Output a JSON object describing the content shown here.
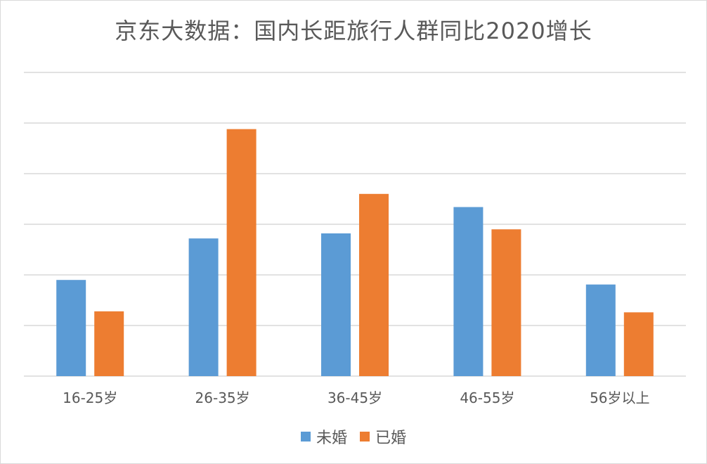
{
  "chart_data": {
    "type": "bar",
    "title": "京东大数据：国内长距旅行人群同比2020增长",
    "xlabel": "",
    "ylabel": "",
    "ylim": [
      0,
      6
    ],
    "grid": true,
    "legend_position": "bottom",
    "categories": [
      "16-25岁",
      "26-35岁",
      "36-45岁",
      "46-55岁",
      "56岁以上"
    ],
    "series": [
      {
        "name": "未婚",
        "color": "#5b9bd5",
        "values": [
          1.9,
          2.72,
          2.82,
          3.34,
          1.81
        ]
      },
      {
        "name": "已婚",
        "color": "#ed7d31",
        "values": [
          1.28,
          4.88,
          3.6,
          2.9,
          1.26
        ]
      }
    ]
  }
}
